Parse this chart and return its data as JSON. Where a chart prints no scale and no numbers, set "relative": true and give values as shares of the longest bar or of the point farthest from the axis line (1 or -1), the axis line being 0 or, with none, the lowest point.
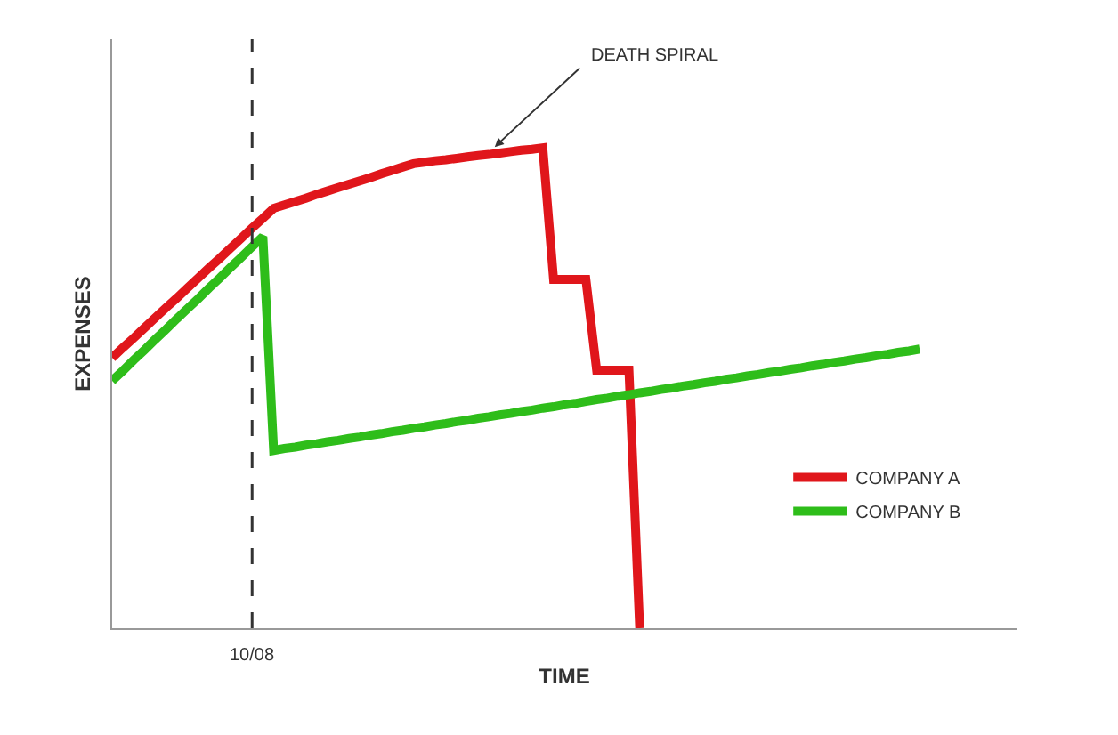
{
  "chart_data": {
    "type": "line",
    "xlabel": "TIME",
    "ylabel": "EXPENSES",
    "relative": true,
    "categories": [
      null,
      null,
      null,
      null,
      null,
      null,
      null,
      null,
      null,
      null,
      null,
      null,
      null,
      null,
      null,
      null,
      null,
      null,
      null,
      null,
      null,
      null,
      null,
      null,
      null,
      null,
      null,
      null,
      null,
      null,
      null,
      null,
      null,
      null,
      null,
      null,
      null,
      null,
      null,
      null,
      null,
      null,
      null,
      null,
      null,
      null,
      null,
      null,
      null,
      null,
      null,
      null,
      null,
      null,
      null,
      null,
      null,
      null,
      null,
      null,
      null,
      null,
      null,
      null,
      null,
      null,
      null,
      null,
      null,
      null,
      null,
      null,
      null,
      null,
      null,
      null,
      null,
      null,
      null,
      null,
      null,
      null,
      null,
      null,
      null
    ],
    "series": [
      {
        "name": "COMPANY A",
        "color": "#e0161b",
        "values": [
          0.563,
          0.584,
          0.604,
          0.625,
          0.646,
          0.667,
          0.687,
          0.708,
          0.729,
          0.75,
          0.77,
          0.791,
          0.812,
          0.833,
          0.853,
          0.874,
          0.881,
          0.888,
          0.895,
          0.903,
          0.91,
          0.917,
          0.924,
          0.931,
          0.938,
          0.946,
          0.953,
          0.96,
          0.967,
          0.97,
          0.973,
          0.975,
          0.978,
          0.981,
          0.984,
          0.986,
          0.989,
          0.992,
          0.995,
          0.997,
          1,
          0.726,
          0.726,
          0.726,
          0.726,
          0.537,
          0.537,
          0.537,
          0.537,
          0,
          null,
          null,
          null,
          null,
          null,
          null,
          null,
          null,
          null,
          null,
          null,
          null,
          null,
          null,
          null,
          null,
          null,
          null,
          null,
          null,
          null,
          null,
          null,
          null,
          null,
          null,
          null,
          null,
          null,
          null,
          null,
          null,
          null,
          null,
          null
        ]
      },
      {
        "name": "COMPANY B",
        "color": "#2ebd1a",
        "values": [
          0.515,
          0.536,
          0.558,
          0.579,
          0.601,
          0.622,
          0.644,
          0.665,
          0.686,
          0.708,
          0.729,
          0.751,
          0.772,
          0.794,
          0.815,
          0.37,
          0.374,
          0.377,
          0.381,
          0.384,
          0.388,
          0.391,
          0.395,
          0.398,
          0.402,
          0.405,
          0.409,
          0.412,
          0.416,
          0.419,
          0.423,
          0.426,
          0.43,
          0.433,
          0.437,
          0.44,
          0.444,
          0.447,
          0.451,
          0.454,
          0.458,
          0.461,
          0.465,
          0.468,
          0.472,
          0.476,
          0.479,
          0.483,
          0.486,
          0.49,
          0.493,
          0.497,
          0.5,
          0.504,
          0.507,
          0.511,
          0.514,
          0.518,
          0.521,
          0.525,
          0.528,
          0.532,
          0.535,
          0.539,
          0.542,
          0.546,
          0.549,
          0.553,
          0.556,
          0.56,
          0.563,
          0.567,
          0.57,
          0.574,
          0.577,
          0.581,
          null,
          null,
          null,
          null,
          null,
          null,
          null,
          null,
          null
        ]
      }
    ],
    "annotations": [
      "DEATH SPIRAL",
      "10/08"
    ],
    "legend": "bottom right",
    "grid": false,
    "line_style": "solid"
  }
}
